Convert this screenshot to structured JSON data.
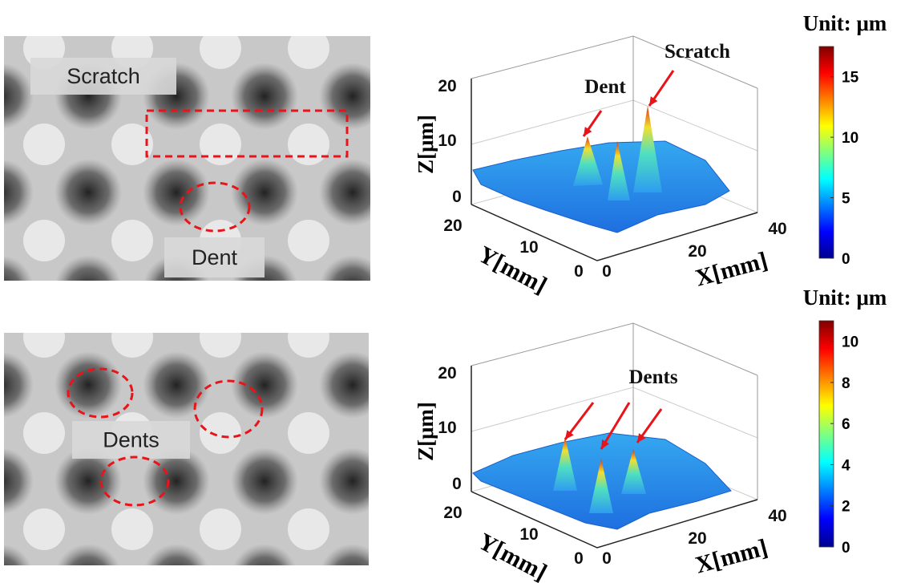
{
  "panels": [
    {
      "photo_labels": [
        "Scratch",
        "Dent"
      ],
      "plot": {
        "annotations": [
          "Dent",
          "Scratch"
        ],
        "z_label": "Z[μm]",
        "y_label": "Y[mm]",
        "x_label": "X[mm]",
        "z_ticks": [
          0,
          10,
          20
        ],
        "y_ticks": [
          20,
          10,
          0
        ],
        "x_ticks": [
          0,
          20,
          40
        ]
      },
      "colorbar": {
        "title": "Unit: μm",
        "lim": [
          0,
          17.5
        ],
        "ticks": [
          0,
          5,
          10,
          15
        ]
      }
    },
    {
      "photo_labels": [
        "Dents"
      ],
      "plot": {
        "annotations": [
          "Dents"
        ],
        "z_label": "Z[μm]",
        "y_label": "Y[mm]",
        "x_label": "X[mm]",
        "z_ticks": [
          0,
          10,
          20
        ],
        "y_ticks": [
          20,
          10,
          0
        ],
        "x_ticks": [
          0,
          20,
          40
        ]
      },
      "colorbar": {
        "title": "Unit: μm",
        "lim": [
          0,
          11
        ],
        "ticks": [
          0,
          2,
          4,
          6,
          8,
          10
        ]
      }
    }
  ]
}
